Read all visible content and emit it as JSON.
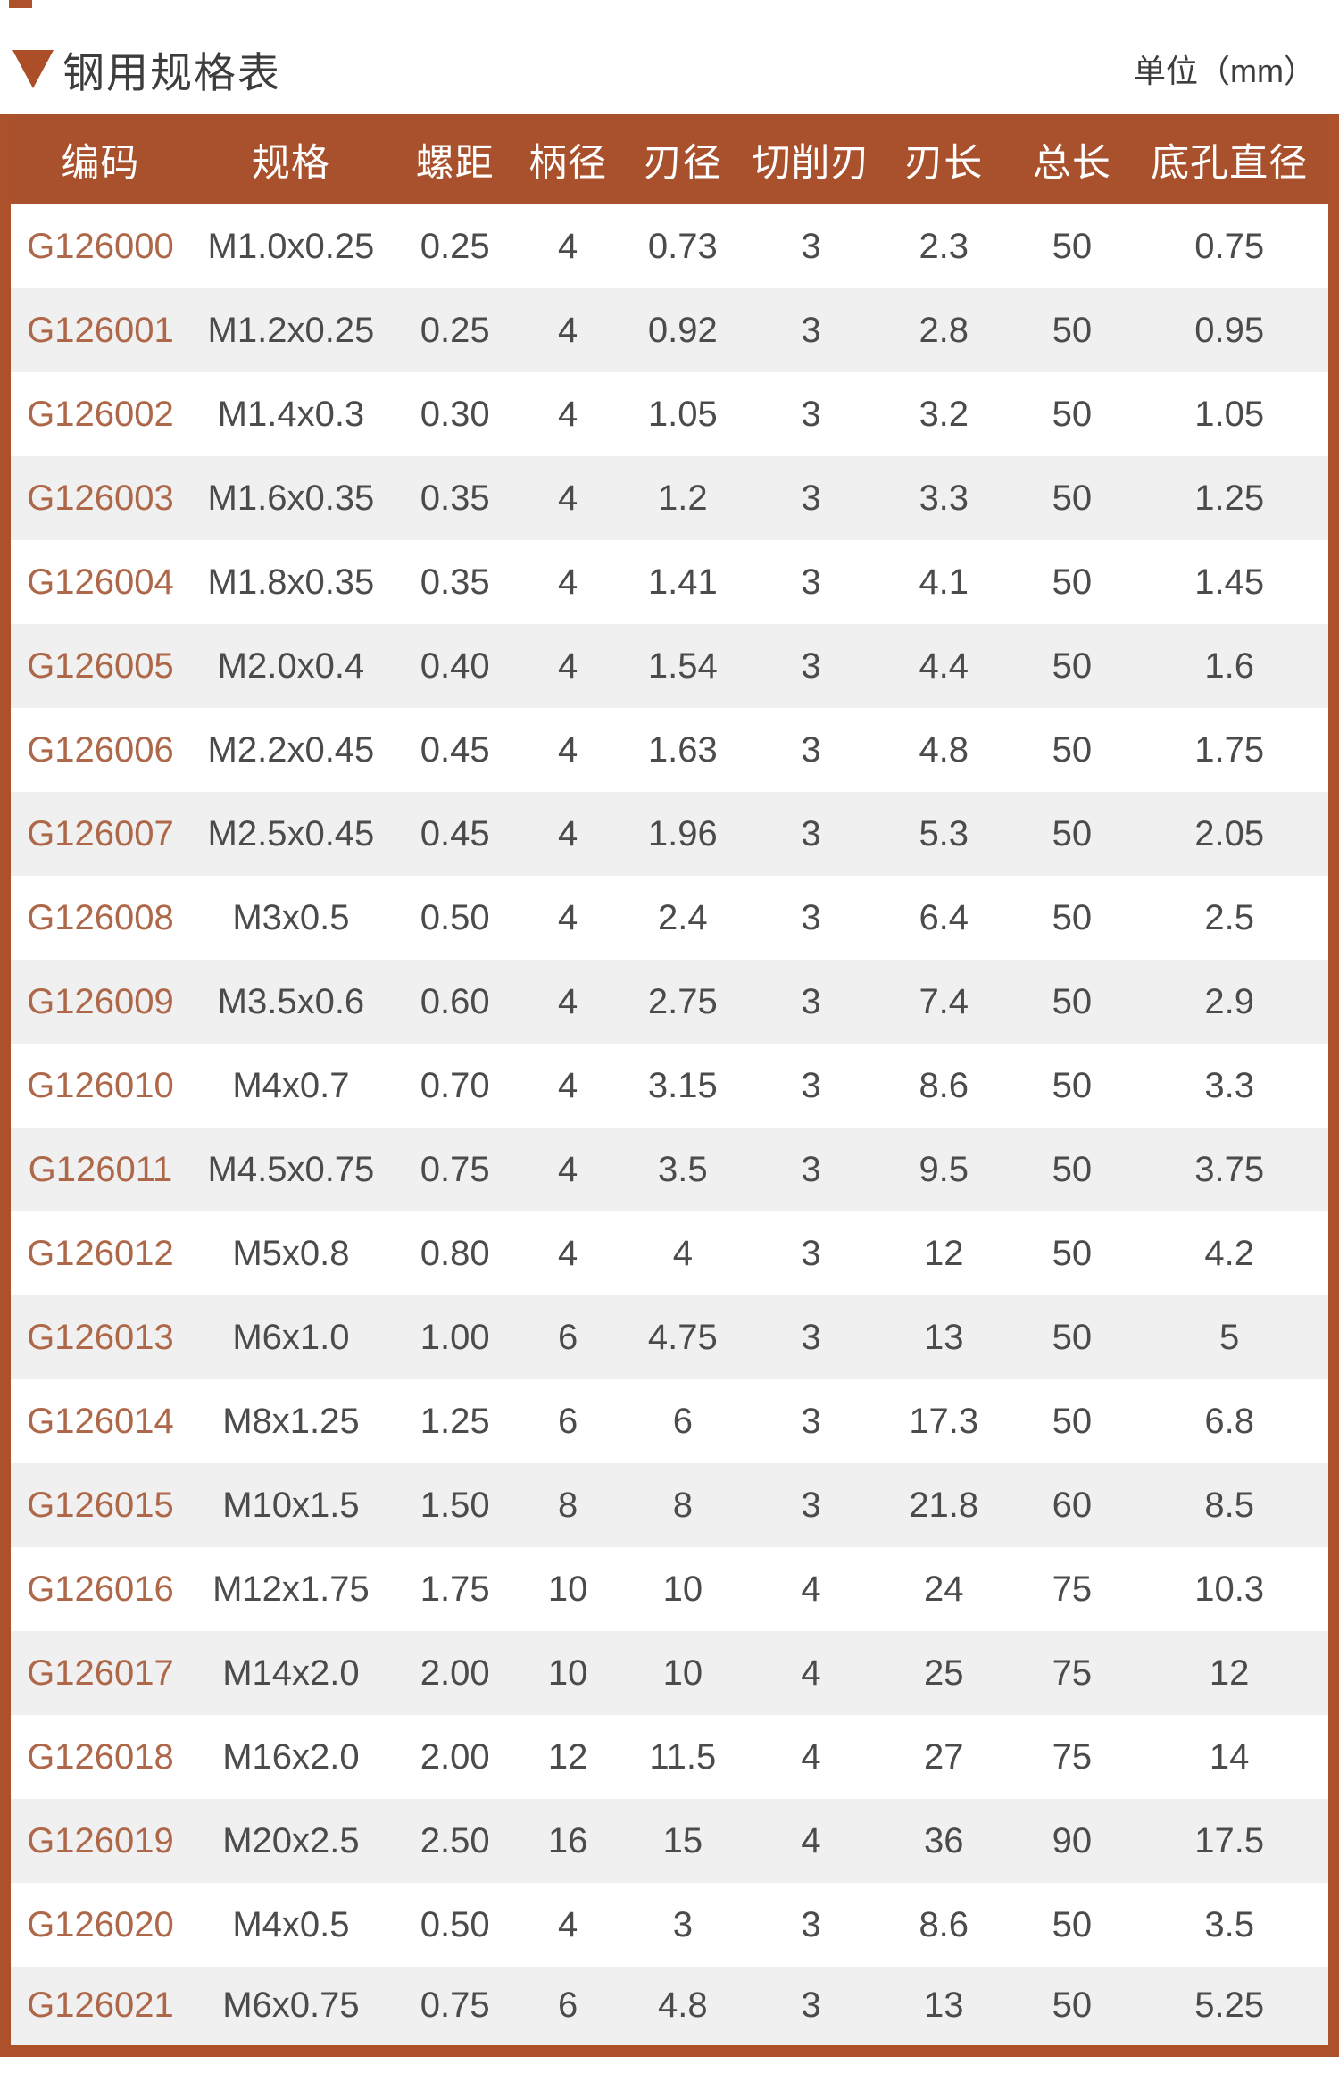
{
  "page": {
    "title": "钢用规格表",
    "unit_label": "单位（mm）",
    "accent_color": "#ac5129",
    "header_bg_color": "#a9512c",
    "code_text_color": "#ae6849",
    "stripe_color": "#f0f0f0"
  },
  "table": {
    "headers": [
      "编码",
      "规格",
      "螺距",
      "柄径",
      "刃径",
      "切削刃",
      "刃长",
      "总长",
      "底孔直径"
    ],
    "rows": [
      [
        "G126000",
        "M1.0x0.25",
        "0.25",
        "4",
        "0.73",
        "3",
        "2.3",
        "50",
        "0.75"
      ],
      [
        "G126001",
        "M1.2x0.25",
        "0.25",
        "4",
        "0.92",
        "3",
        "2.8",
        "50",
        "0.95"
      ],
      [
        "G126002",
        "M1.4x0.3",
        "0.30",
        "4",
        "1.05",
        "3",
        "3.2",
        "50",
        "1.05"
      ],
      [
        "G126003",
        "M1.6x0.35",
        "0.35",
        "4",
        "1.2",
        "3",
        "3.3",
        "50",
        "1.25"
      ],
      [
        "G126004",
        "M1.8x0.35",
        "0.35",
        "4",
        "1.41",
        "3",
        "4.1",
        "50",
        "1.45"
      ],
      [
        "G126005",
        "M2.0x0.4",
        "0.40",
        "4",
        "1.54",
        "3",
        "4.4",
        "50",
        "1.6"
      ],
      [
        "G126006",
        "M2.2x0.45",
        "0.45",
        "4",
        "1.63",
        "3",
        "4.8",
        "50",
        "1.75"
      ],
      [
        "G126007",
        "M2.5x0.45",
        "0.45",
        "4",
        "1.96",
        "3",
        "5.3",
        "50",
        "2.05"
      ],
      [
        "G126008",
        "M3x0.5",
        "0.50",
        "4",
        "2.4",
        "3",
        "6.4",
        "50",
        "2.5"
      ],
      [
        "G126009",
        "M3.5x0.6",
        "0.60",
        "4",
        "2.75",
        "3",
        "7.4",
        "50",
        "2.9"
      ],
      [
        "G126010",
        "M4x0.7",
        "0.70",
        "4",
        "3.15",
        "3",
        "8.6",
        "50",
        "3.3"
      ],
      [
        "G126011",
        "M4.5x0.75",
        "0.75",
        "4",
        "3.5",
        "3",
        "9.5",
        "50",
        "3.75"
      ],
      [
        "G126012",
        "M5x0.8",
        "0.80",
        "4",
        "4",
        "3",
        "12",
        "50",
        "4.2"
      ],
      [
        "G126013",
        "M6x1.0",
        "1.00",
        "6",
        "4.75",
        "3",
        "13",
        "50",
        "5"
      ],
      [
        "G126014",
        "M8x1.25",
        "1.25",
        "6",
        "6",
        "3",
        "17.3",
        "50",
        "6.8"
      ],
      [
        "G126015",
        "M10x1.5",
        "1.50",
        "8",
        "8",
        "3",
        "21.8",
        "60",
        "8.5"
      ],
      [
        "G126016",
        "M12x1.75",
        "1.75",
        "10",
        "10",
        "4",
        "24",
        "75",
        "10.3"
      ],
      [
        "G126017",
        "M14x2.0",
        "2.00",
        "10",
        "10",
        "4",
        "25",
        "75",
        "12"
      ],
      [
        "G126018",
        "M16x2.0",
        "2.00",
        "12",
        "11.5",
        "4",
        "27",
        "75",
        "14"
      ],
      [
        "G126019",
        "M20x2.5",
        "2.50",
        "16",
        "15",
        "4",
        "36",
        "90",
        "17.5"
      ],
      [
        "G126020",
        "M4x0.5",
        "0.50",
        "4",
        "3",
        "3",
        "8.6",
        "50",
        "3.5"
      ],
      [
        "G126021",
        "M6x0.75",
        "0.75",
        "6",
        "4.8",
        "3",
        "13",
        "50",
        "5.25"
      ]
    ]
  }
}
